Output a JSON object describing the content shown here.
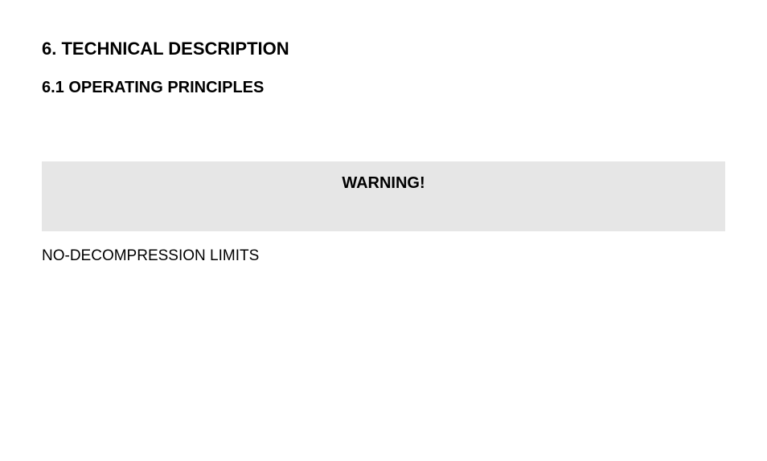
{
  "document": {
    "heading1": "6. TECHNICAL DESCRIPTION",
    "heading2": "6.1 OPERATING PRINCIPLES",
    "warning": {
      "title": "WARNING!",
      "background_color": "#e6e6e6",
      "title_fontsize": 20,
      "title_fontweight": "bold"
    },
    "section_label": "NO-DECOMPRESSION LIMITS",
    "colors": {
      "page_bg": "#ffffff",
      "text": "#000000"
    },
    "typography": {
      "h1_fontsize": 22,
      "h2_fontsize": 20,
      "body_fontsize": 19,
      "font_family": "Arial"
    }
  }
}
